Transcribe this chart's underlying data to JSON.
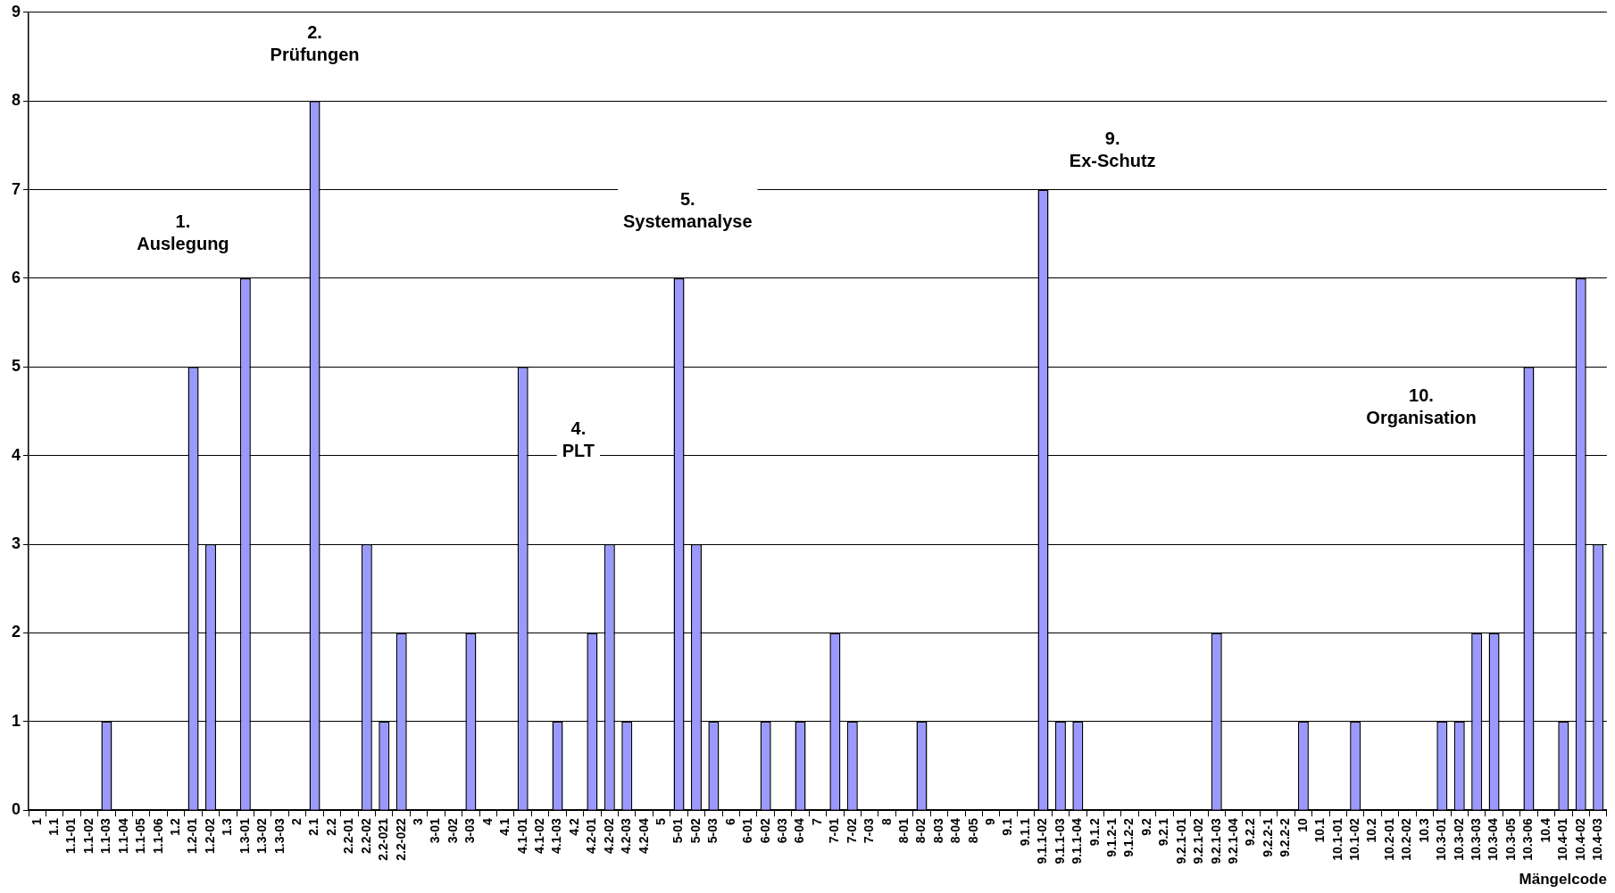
{
  "chart_data": {
    "type": "bar",
    "xlabel": "Mängelcode",
    "categories": [
      "1",
      "1.1",
      "1.1-01",
      "1.1-02",
      "1.1-03",
      "1.1-04",
      "1.1-05",
      "1.1-06",
      "1.2",
      "1.2-01",
      "1.2-02",
      "1.3",
      "1.3-01",
      "1.3-02",
      "1.3-03",
      "2",
      "2.1",
      "2.2",
      "2.2-01",
      "2.2-02",
      "2.2-021",
      "2.2-022",
      "3",
      "3-01",
      "3-02",
      "3-03",
      "4",
      "4.1",
      "4.1-01",
      "4.1-02",
      "4.1-03",
      "4.2",
      "4.2-01",
      "4.2-02",
      "4.2-03",
      "4.2-04",
      "5",
      "5-01",
      "5-02",
      "5-03",
      "6",
      "6-01",
      "6-02",
      "6-03",
      "6-04",
      "7",
      "7-01",
      "7-02",
      "7-03",
      "8",
      "8-01",
      "8-02",
      "8-03",
      "8-04",
      "8-05",
      "9",
      "9.1",
      "9.1.1",
      "9.1.1-02",
      "9.1.1-03",
      "9.1.1-04",
      "9.1.2",
      "9.1.2-1",
      "9.1.2-2",
      "9.2",
      "9.2.1",
      "9.2.1-01",
      "9.2.1-02",
      "9.2.1-03",
      "9.2.1-04",
      "9.2.2",
      "9.2.2-1",
      "9.2.2-2",
      "10",
      "10.1",
      "10.1-01",
      "10.1-02",
      "10.2",
      "10.2-01",
      "10.2-02",
      "10.3",
      "10.3-01",
      "10.3-02",
      "10.3-03",
      "10.3-04",
      "10.3-05",
      "10.3-06",
      "10.4",
      "10.4-01",
      "10.4-02",
      "10.4-03"
    ],
    "values": [
      0,
      0,
      0,
      0,
      1,
      0,
      0,
      0,
      0,
      5,
      3,
      0,
      6,
      0,
      0,
      0,
      8,
      0,
      0,
      3,
      1,
      2,
      0,
      0,
      0,
      2,
      0,
      0,
      5,
      0,
      1,
      0,
      2,
      3,
      1,
      0,
      0,
      6,
      3,
      1,
      0,
      0,
      1,
      0,
      1,
      0,
      2,
      1,
      0,
      0,
      0,
      1,
      0,
      0,
      0,
      0,
      0,
      0,
      7,
      1,
      1,
      0,
      0,
      0,
      0,
      0,
      0,
      0,
      2,
      0,
      0,
      0,
      0,
      1,
      0,
      0,
      1,
      0,
      0,
      0,
      0,
      1,
      1,
      2,
      2,
      0,
      5,
      0,
      1,
      6,
      3
    ],
    "color": "#9999ff",
    "ylim": [
      0,
      9
    ],
    "yticks": [
      0,
      1,
      2,
      3,
      4,
      5,
      6,
      7,
      8,
      9
    ],
    "grid": "y",
    "legend": false,
    "annotations": [
      "1.\nAuslegung",
      "2.\nPrüfungen",
      "4.\nPLT",
      "5.\nSystemanalyse",
      "9.\nEx-Schutz",
      "10.\nOrganisation"
    ]
  }
}
